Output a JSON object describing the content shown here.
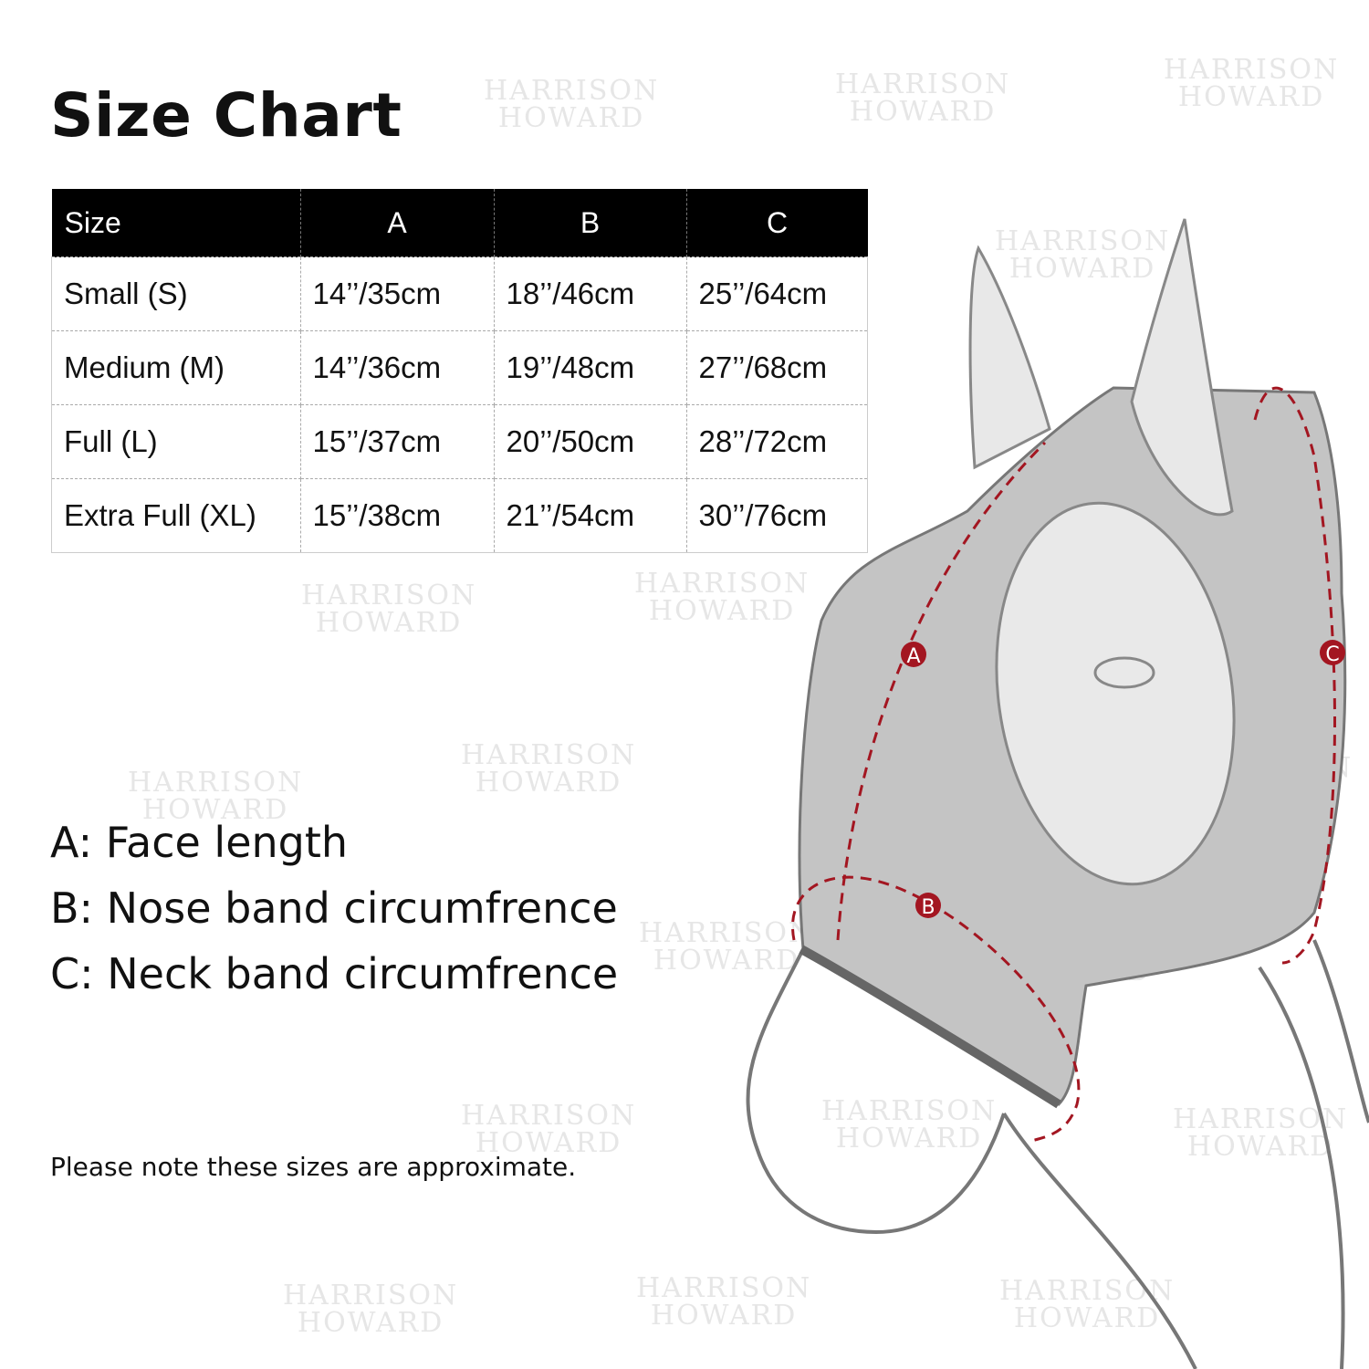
{
  "title": "Size Chart",
  "watermark": "HARRISON HOWARD",
  "table": {
    "headers": [
      "Size",
      "A",
      "B",
      "C"
    ],
    "rows": [
      [
        "Small (S)",
        "14’’/35cm",
        "18’’/46cm",
        "25’’/64cm"
      ],
      [
        "Medium (M)",
        "14’’/36cm",
        "19’’/48cm",
        "27’’/68cm"
      ],
      [
        "Full (L)",
        "15’’/37cm",
        "20’’/50cm",
        "28’’/72cm"
      ],
      [
        "Extra Full (XL)",
        "15’’/38cm",
        "21’’/54cm",
        "30’’/76cm"
      ]
    ]
  },
  "legend": [
    "A: Face length",
    "B: Nose band circumfrence",
    "C: Neck band circumfrence"
  ],
  "note": "Please note these sizes are approximate.",
  "diagram": {
    "labels": [
      "A",
      "B",
      "C"
    ],
    "accent": "#a31621",
    "mask_color": "#c4c4c4"
  }
}
